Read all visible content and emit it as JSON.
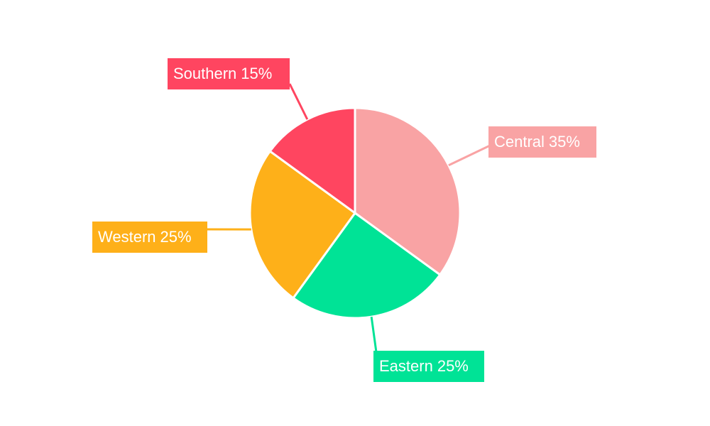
{
  "chart_data": {
    "type": "pie",
    "categories": [
      "Central",
      "Eastern",
      "Western",
      "Southern"
    ],
    "values": [
      35,
      25,
      25,
      15
    ],
    "value_labels": [
      "35%",
      "25%",
      "25%",
      "15%"
    ],
    "colors": [
      "#f9a3a4",
      "#00e396",
      "#feb019",
      "#ff4560"
    ]
  }
}
